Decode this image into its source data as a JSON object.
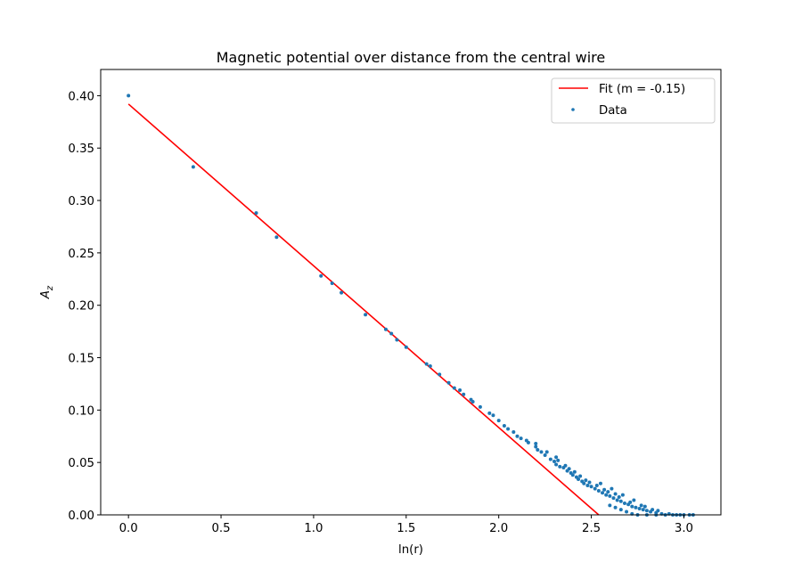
{
  "chart_data": {
    "type": "scatter",
    "title": "Magnetic potential over distance from the central wire",
    "xlabel": "ln(r)",
    "ylabel_main": "A",
    "ylabel_sub": "z",
    "xlim": [
      -0.15,
      3.2
    ],
    "ylim": [
      0.0,
      0.425
    ],
    "xticks": [
      0.0,
      0.5,
      1.0,
      1.5,
      2.0,
      2.5,
      3.0
    ],
    "xtick_labels": [
      "0.0",
      "0.5",
      "1.0",
      "1.5",
      "2.0",
      "2.5",
      "3.0"
    ],
    "yticks": [
      0.0,
      0.05,
      0.1,
      0.15,
      0.2,
      0.25,
      0.3,
      0.35,
      0.4
    ],
    "ytick_labels": [
      "0.00",
      "0.05",
      "0.10",
      "0.15",
      "0.20",
      "0.25",
      "0.30",
      "0.35",
      "0.40"
    ],
    "grid": false,
    "legend_position": "top-right",
    "series": [
      {
        "name": "Fit (m = -0.15)",
        "kind": "line",
        "color": "#ff0000",
        "x": [
          0.0,
          2.54
        ],
        "y": [
          0.392,
          0.0
        ]
      },
      {
        "name": "Data",
        "kind": "scatter",
        "color": "#1f77b4",
        "points": [
          [
            0.0,
            0.4
          ],
          [
            0.35,
            0.332
          ],
          [
            0.69,
            0.288
          ],
          [
            0.8,
            0.265
          ],
          [
            1.04,
            0.228
          ],
          [
            1.1,
            0.221
          ],
          [
            1.15,
            0.212
          ],
          [
            1.28,
            0.191
          ],
          [
            1.39,
            0.177
          ],
          [
            1.42,
            0.173
          ],
          [
            1.45,
            0.167
          ],
          [
            1.5,
            0.16
          ],
          [
            1.61,
            0.144
          ],
          [
            1.63,
            0.142
          ],
          [
            1.68,
            0.134
          ],
          [
            1.73,
            0.126
          ],
          [
            1.76,
            0.121
          ],
          [
            1.79,
            0.119
          ],
          [
            1.81,
            0.115
          ],
          [
            1.85,
            0.11
          ],
          [
            1.86,
            0.108
          ],
          [
            1.9,
            0.103
          ],
          [
            1.95,
            0.097
          ],
          [
            1.97,
            0.095
          ],
          [
            2.0,
            0.09
          ],
          [
            2.03,
            0.085
          ],
          [
            2.05,
            0.082
          ],
          [
            2.08,
            0.079
          ],
          [
            2.1,
            0.075
          ],
          [
            2.12,
            0.073
          ],
          [
            2.15,
            0.071
          ],
          [
            2.16,
            0.069
          ],
          [
            2.2,
            0.065
          ],
          [
            2.21,
            0.062
          ],
          [
            2.23,
            0.06
          ],
          [
            2.25,
            0.057
          ],
          [
            2.28,
            0.053
          ],
          [
            2.3,
            0.051
          ],
          [
            2.31,
            0.048
          ],
          [
            2.33,
            0.046
          ],
          [
            2.35,
            0.045
          ],
          [
            2.37,
            0.042
          ],
          [
            2.39,
            0.04
          ],
          [
            2.4,
            0.038
          ],
          [
            2.42,
            0.036
          ],
          [
            2.43,
            0.034
          ],
          [
            2.45,
            0.032
          ],
          [
            2.46,
            0.03
          ],
          [
            2.48,
            0.028
          ],
          [
            2.5,
            0.027
          ],
          [
            2.52,
            0.025
          ],
          [
            2.54,
            0.023
          ],
          [
            2.56,
            0.021
          ],
          [
            2.58,
            0.019
          ],
          [
            2.6,
            0.018
          ],
          [
            2.62,
            0.016
          ],
          [
            2.64,
            0.014
          ],
          [
            2.66,
            0.013
          ],
          [
            2.68,
            0.011
          ],
          [
            2.7,
            0.01
          ],
          [
            2.72,
            0.008
          ],
          [
            2.74,
            0.007
          ],
          [
            2.76,
            0.006
          ],
          [
            2.78,
            0.005
          ],
          [
            2.8,
            0.004
          ],
          [
            2.82,
            0.003
          ],
          [
            2.85,
            0.002
          ],
          [
            2.88,
            0.001
          ],
          [
            2.92,
            0.001
          ],
          [
            2.96,
            0.0
          ],
          [
            3.0,
            0.0
          ],
          [
            3.05,
            0.0
          ],
          [
            2.31,
            0.055
          ],
          [
            2.36,
            0.047
          ],
          [
            2.41,
            0.041
          ],
          [
            2.47,
            0.033
          ],
          [
            2.53,
            0.028
          ],
          [
            2.59,
            0.022
          ],
          [
            2.65,
            0.017
          ],
          [
            2.71,
            0.012
          ],
          [
            2.77,
            0.009
          ],
          [
            2.83,
            0.005
          ],
          [
            2.55,
            0.03
          ],
          [
            2.61,
            0.025
          ],
          [
            2.67,
            0.019
          ],
          [
            2.73,
            0.014
          ],
          [
            2.79,
            0.008
          ],
          [
            2.86,
            0.004
          ],
          [
            2.2,
            0.068
          ],
          [
            2.26,
            0.06
          ],
          [
            2.32,
            0.052
          ],
          [
            2.38,
            0.044
          ],
          [
            2.44,
            0.037
          ],
          [
            2.49,
            0.031
          ],
          [
            2.57,
            0.024
          ],
          [
            2.63,
            0.02
          ],
          [
            2.6,
            0.009
          ],
          [
            2.63,
            0.007
          ],
          [
            2.66,
            0.005
          ],
          [
            2.69,
            0.003
          ],
          [
            2.72,
            0.001
          ],
          [
            2.75,
            0.0
          ],
          [
            2.8,
            0.0
          ],
          [
            2.85,
            0.0
          ],
          [
            2.9,
            0.0
          ],
          [
            2.94,
            0.0
          ],
          [
            2.98,
            0.0
          ],
          [
            3.03,
            0.0
          ]
        ]
      }
    ]
  }
}
